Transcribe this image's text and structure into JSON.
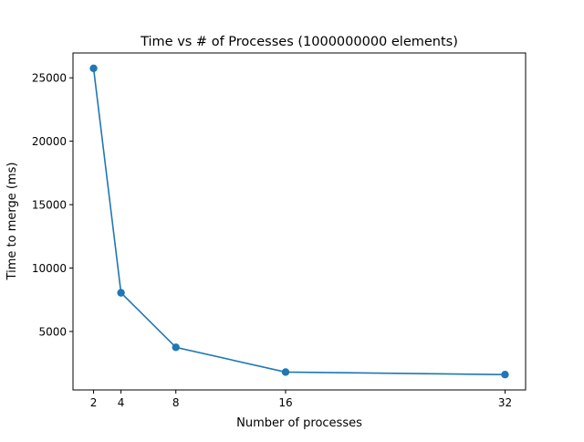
{
  "chart_data": {
    "type": "line",
    "title": "Time vs # of Processes (1000000000 elements)",
    "xlabel": "Number of processes",
    "ylabel": "Time to merge (ms)",
    "x": [
      2,
      4,
      8,
      16,
      32
    ],
    "series": [
      {
        "values": [
          25750,
          8050,
          3750,
          1800,
          1600
        ],
        "color": "#1f77b4",
        "marker": "circle"
      }
    ],
    "xticks": [
      2,
      4,
      8,
      16,
      32
    ],
    "xtick_labels": [
      "2",
      "4",
      "8",
      "16",
      "32"
    ],
    "yticks": [
      5000,
      10000,
      15000,
      20000,
      25000
    ],
    "ytick_labels": [
      "5000",
      "10000",
      "15000",
      "20000",
      "25000"
    ],
    "xlim": [
      0.5,
      33.5
    ],
    "ylim": [
      390,
      26960
    ],
    "grid": false,
    "legend": false
  }
}
